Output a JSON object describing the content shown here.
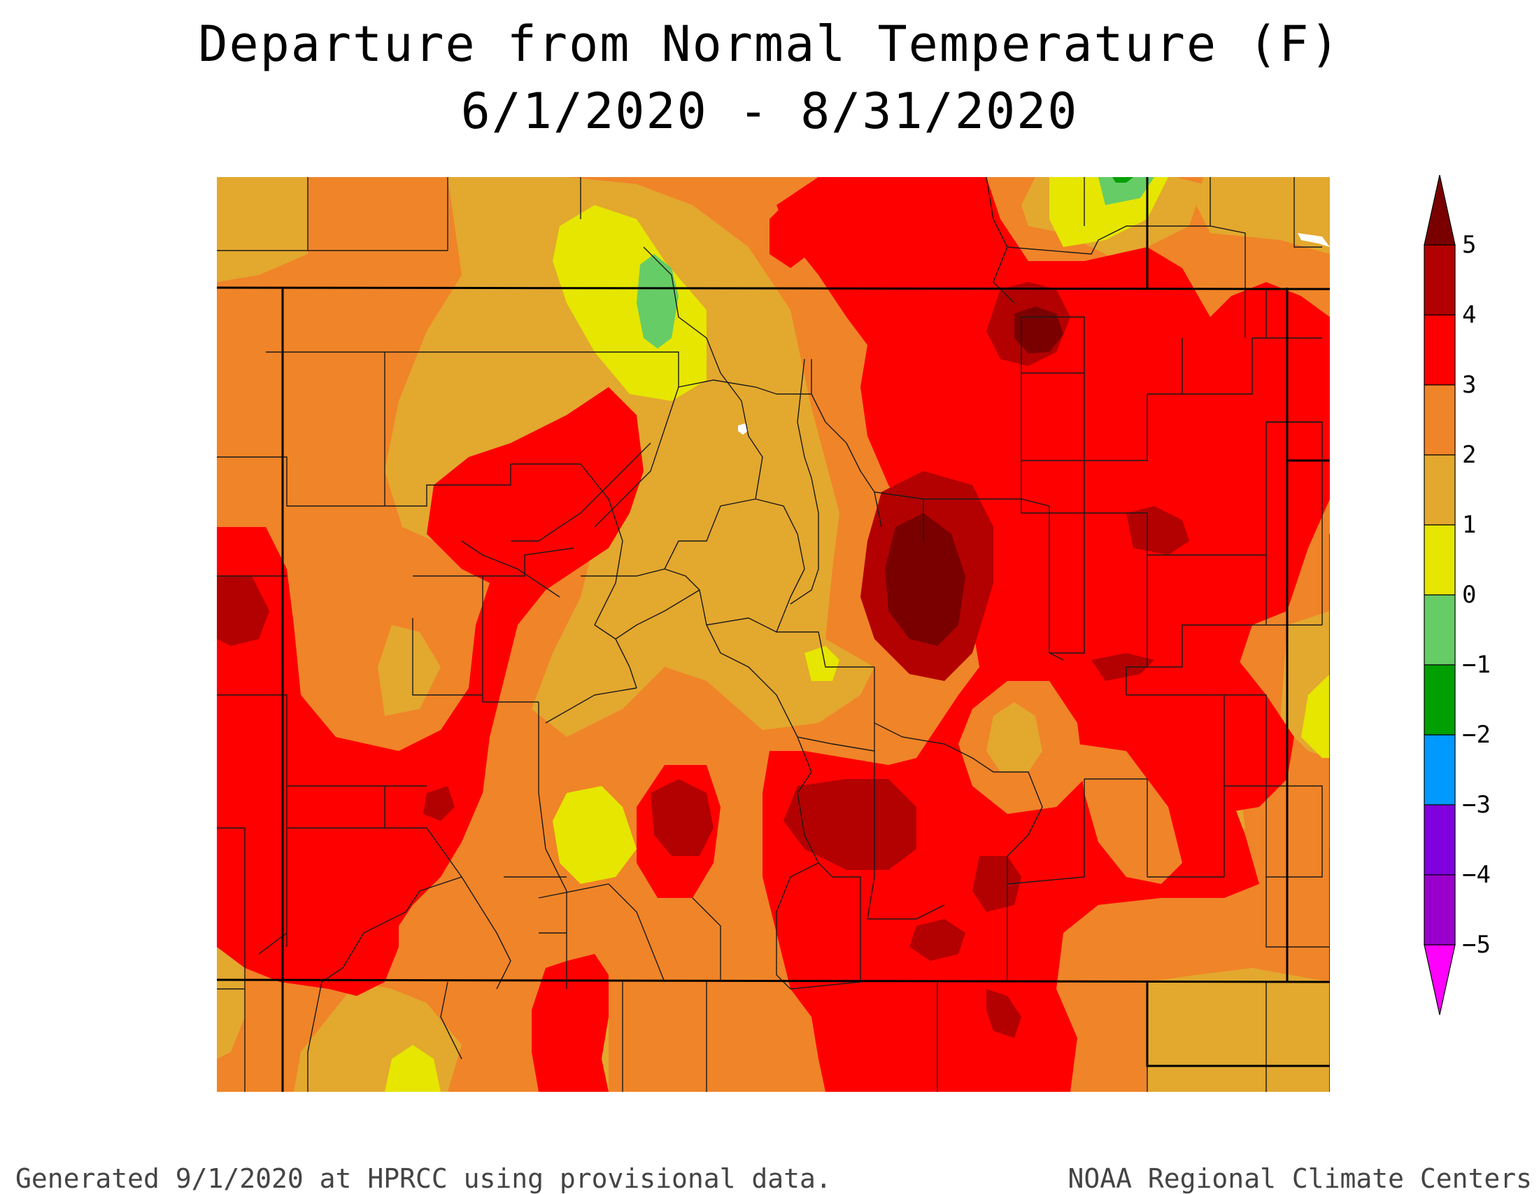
{
  "title": {
    "line1": "Departure from Normal Temperature (F)",
    "line2": "6/1/2020 - 8/31/2020"
  },
  "legend": {
    "ticks": [
      "5",
      "4",
      "3",
      "2",
      "1",
      "0",
      "−1",
      "−2",
      "−3",
      "−4",
      "−5"
    ],
    "bins": [
      {
        "range": "> 5",
        "color": "#7a0000"
      },
      {
        "range": "4 to 5",
        "color": "#b30000"
      },
      {
        "range": "3 to 4",
        "color": "#ff0000"
      },
      {
        "range": "2 to 3",
        "color": "#f08428"
      },
      {
        "range": "1 to 2",
        "color": "#e3a82e"
      },
      {
        "range": "0 to 1",
        "color": "#e6e600"
      },
      {
        "range": "-1 to 0",
        "color": "#66cc66"
      },
      {
        "range": "-2 to -1",
        "color": "#00a000"
      },
      {
        "range": "-3 to -2",
        "color": "#0099ff"
      },
      {
        "range": "-4 to -3",
        "color": "#8000e0"
      },
      {
        "range": "-5 to -4",
        "color": "#9900cc"
      },
      {
        "range": "< -5",
        "color": "#ff00ff"
      }
    ]
  },
  "footer": {
    "left": "Generated 9/1/2020 at HPRCC using provisional data.",
    "right": "NOAA Regional Climate Centers"
  }
}
